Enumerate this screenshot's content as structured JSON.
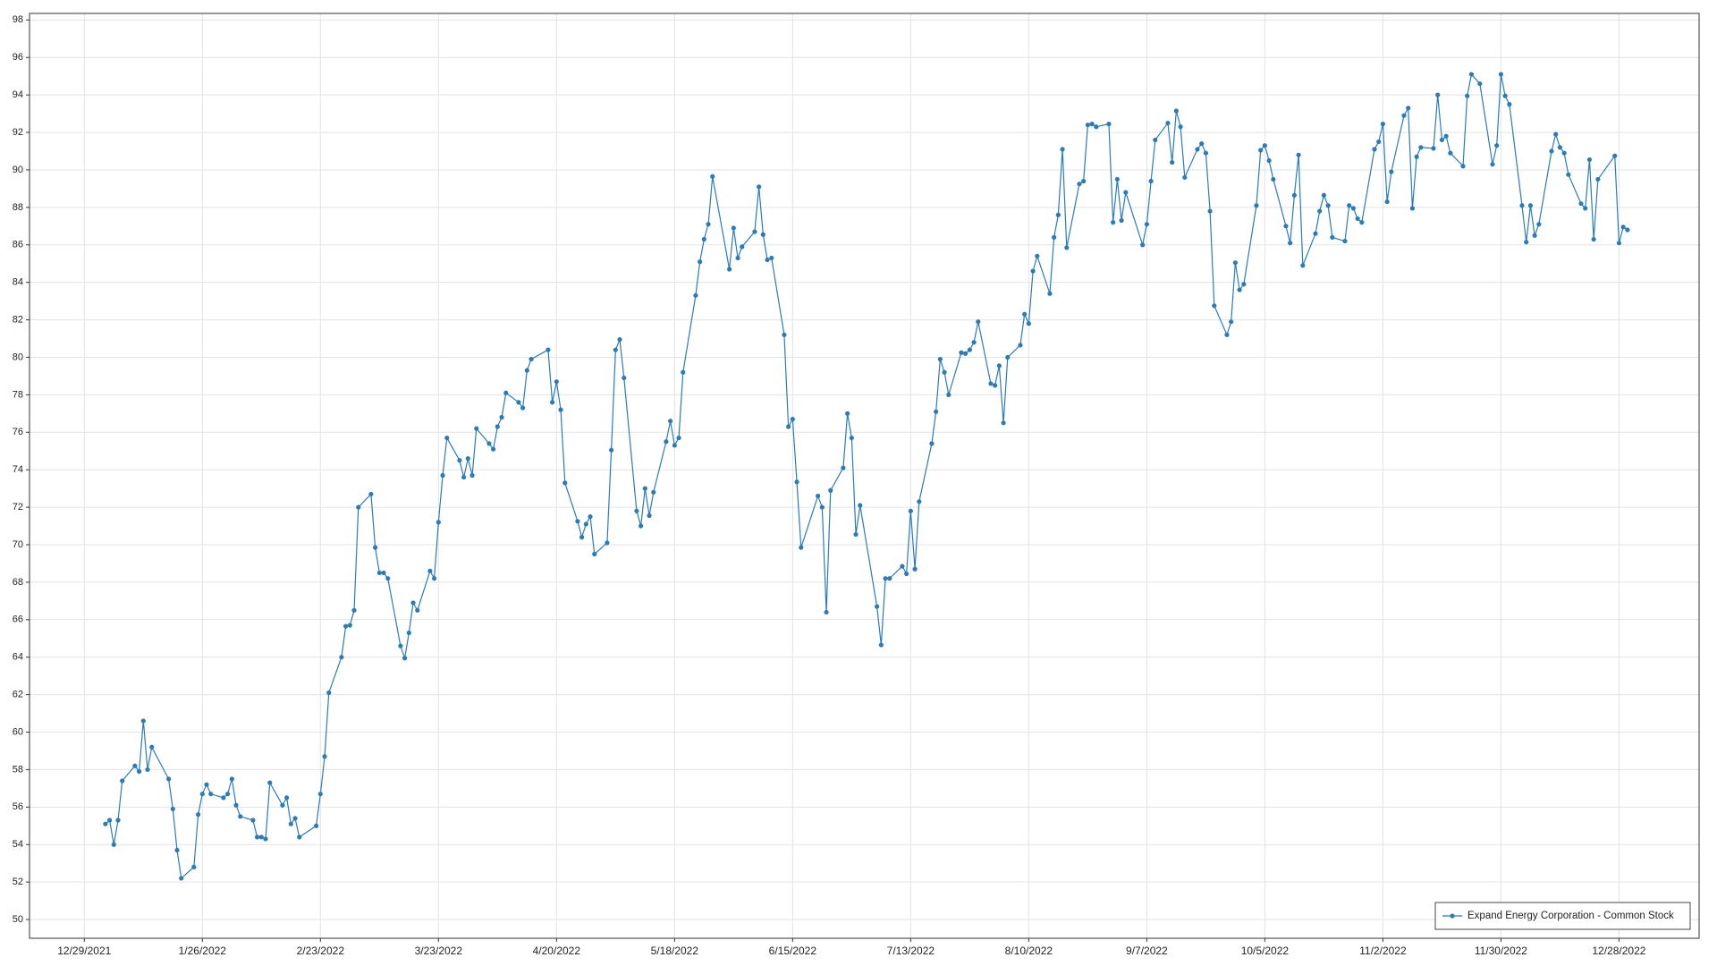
{
  "chart_data": {
    "type": "line",
    "x": [
      "1/3/2022",
      "1/4/2022",
      "1/5/2022",
      "1/6/2022",
      "1/7/2022",
      "1/10/2022",
      "1/11/2022",
      "1/12/2022",
      "1/13/2022",
      "1/14/2022",
      "1/18/2022",
      "1/19/2022",
      "1/20/2022",
      "1/21/2022",
      "1/24/2022",
      "1/25/2022",
      "1/26/2022",
      "1/27/2022",
      "1/28/2022",
      "1/31/2022",
      "2/1/2022",
      "2/2/2022",
      "2/3/2022",
      "2/4/2022",
      "2/7/2022",
      "2/8/2022",
      "2/9/2022",
      "2/10/2022",
      "2/11/2022",
      "2/14/2022",
      "2/15/2022",
      "2/16/2022",
      "2/17/2022",
      "2/18/2022",
      "2/22/2022",
      "2/23/2022",
      "2/24/2022",
      "2/25/2022",
      "2/28/2022",
      "3/1/2022",
      "3/2/2022",
      "3/3/2022",
      "3/4/2022",
      "3/7/2022",
      "3/8/2022",
      "3/9/2022",
      "3/10/2022",
      "3/11/2022",
      "3/14/2022",
      "3/15/2022",
      "3/16/2022",
      "3/17/2022",
      "3/18/2022",
      "3/21/2022",
      "3/22/2022",
      "3/23/2022",
      "3/24/2022",
      "3/25/2022",
      "3/28/2022",
      "3/29/2022",
      "3/30/2022",
      "3/31/2022",
      "4/1/2022",
      "4/4/2022",
      "4/5/2022",
      "4/6/2022",
      "4/7/2022",
      "4/8/2022",
      "4/11/2022",
      "4/12/2022",
      "4/13/2022",
      "4/14/2022",
      "4/18/2022",
      "4/19/2022",
      "4/20/2022",
      "4/21/2022",
      "4/22/2022",
      "4/25/2022",
      "4/26/2022",
      "4/27/2022",
      "4/28/2022",
      "4/29/2022",
      "5/2/2022",
      "5/3/2022",
      "5/4/2022",
      "5/5/2022",
      "5/6/2022",
      "5/9/2022",
      "5/10/2022",
      "5/11/2022",
      "5/12/2022",
      "5/13/2022",
      "5/16/2022",
      "5/17/2022",
      "5/18/2022",
      "5/19/2022",
      "5/20/2022",
      "5/23/2022",
      "5/24/2022",
      "5/25/2022",
      "5/26/2022",
      "5/27/2022",
      "5/31/2022",
      "6/1/2022",
      "6/2/2022",
      "6/3/2022",
      "6/6/2022",
      "6/7/2022",
      "6/8/2022",
      "6/9/2022",
      "6/10/2022",
      "6/13/2022",
      "6/14/2022",
      "6/15/2022",
      "6/16/2022",
      "6/17/2022",
      "6/21/2022",
      "6/22/2022",
      "6/23/2022",
      "6/24/2022",
      "6/27/2022",
      "6/28/2022",
      "6/29/2022",
      "6/30/2022",
      "7/1/2022",
      "7/5/2022",
      "7/6/2022",
      "7/7/2022",
      "7/8/2022",
      "7/11/2022",
      "7/12/2022",
      "7/13/2022",
      "7/14/2022",
      "7/15/2022",
      "7/18/2022",
      "7/19/2022",
      "7/20/2022",
      "7/21/2022",
      "7/22/2022",
      "7/25/2022",
      "7/26/2022",
      "7/27/2022",
      "7/28/2022",
      "7/29/2022",
      "8/1/2022",
      "8/2/2022",
      "8/3/2022",
      "8/4/2022",
      "8/5/2022",
      "8/8/2022",
      "8/9/2022",
      "8/10/2022",
      "8/11/2022",
      "8/12/2022",
      "8/15/2022",
      "8/16/2022",
      "8/17/2022",
      "8/18/2022",
      "8/19/2022",
      "8/22/2022",
      "8/23/2022",
      "8/24/2022",
      "8/25/2022",
      "8/26/2022",
      "8/29/2022",
      "8/30/2022",
      "8/31/2022",
      "9/1/2022",
      "9/2/2022",
      "9/6/2022",
      "9/7/2022",
      "9/8/2022",
      "9/9/2022",
      "9/12/2022",
      "9/13/2022",
      "9/14/2022",
      "9/15/2022",
      "9/16/2022",
      "9/19/2022",
      "9/20/2022",
      "9/21/2022",
      "9/22/2022",
      "9/23/2022",
      "9/26/2022",
      "9/27/2022",
      "9/28/2022",
      "9/29/2022",
      "9/30/2022",
      "10/3/2022",
      "10/4/2022",
      "10/5/2022",
      "10/6/2022",
      "10/7/2022",
      "10/10/2022",
      "10/11/2022",
      "10/12/2022",
      "10/13/2022",
      "10/14/2022",
      "10/17/2022",
      "10/18/2022",
      "10/19/2022",
      "10/20/2022",
      "10/21/2022",
      "10/24/2022",
      "10/25/2022",
      "10/26/2022",
      "10/27/2022",
      "10/28/2022",
      "10/31/2022",
      "11/1/2022",
      "11/2/2022",
      "11/3/2022",
      "11/4/2022",
      "11/7/2022",
      "11/8/2022",
      "11/9/2022",
      "11/10/2022",
      "11/11/2022",
      "11/14/2022",
      "11/15/2022",
      "11/16/2022",
      "11/17/2022",
      "11/18/2022",
      "11/21/2022",
      "11/22/2022",
      "11/23/2022",
      "11/25/2022",
      "11/28/2022",
      "11/29/2022",
      "11/30/2022",
      "12/1/2022",
      "12/2/2022",
      "12/5/2022",
      "12/6/2022",
      "12/7/2022",
      "12/8/2022",
      "12/9/2022",
      "12/12/2022",
      "12/13/2022",
      "12/14/2022",
      "12/15/2022",
      "12/16/2022",
      "12/19/2022",
      "12/20/2022",
      "12/21/2022",
      "12/22/2022",
      "12/23/2022",
      "12/27/2022",
      "12/28/2022",
      "12/29/2022",
      "12/30/2022"
    ],
    "series": [
      {
        "name": "Expand Energy Corporation - Common Stock",
        "color": "#2b7bb9",
        "values": [
          55.1,
          55.3,
          54.0,
          55.3,
          57.4,
          58.2,
          57.9,
          60.6,
          58.0,
          59.2,
          57.5,
          55.9,
          53.7,
          52.2,
          52.8,
          55.6,
          56.7,
          57.2,
          56.7,
          56.5,
          56.7,
          57.5,
          56.1,
          55.5,
          55.3,
          54.4,
          54.4,
          54.3,
          57.3,
          56.1,
          56.5,
          55.1,
          55.4,
          54.4,
          55.0,
          56.7,
          58.7,
          62.1,
          64.0,
          65.65,
          65.7,
          66.5,
          72.0,
          72.7,
          69.85,
          68.5,
          68.5,
          68.2,
          64.6,
          63.95,
          65.3,
          66.9,
          66.5,
          68.6,
          68.2,
          71.2,
          73.7,
          75.7,
          74.5,
          73.6,
          74.6,
          73.7,
          76.2,
          75.4,
          75.1,
          76.3,
          76.8,
          78.1,
          77.6,
          77.3,
          79.3,
          79.9,
          80.4,
          77.6,
          78.7,
          77.2,
          73.3,
          71.25,
          70.4,
          71.1,
          71.5,
          69.5,
          70.1,
          75.05,
          80.4,
          80.95,
          78.9,
          71.8,
          71.0,
          73.0,
          71.55,
          72.8,
          75.5,
          76.6,
          75.3,
          75.7,
          79.2,
          83.3,
          85.1,
          86.3,
          87.1,
          89.65,
          84.7,
          86.9,
          85.3,
          85.9,
          86.7,
          89.1,
          86.55,
          85.2,
          85.3,
          81.2,
          76.3,
          76.7,
          73.35,
          69.85,
          72.6,
          72.0,
          66.4,
          72.9,
          74.1,
          77.0,
          75.7,
          70.55,
          72.1,
          66.7,
          64.65,
          68.2,
          68.2,
          68.85,
          68.45,
          71.8,
          68.7,
          72.3,
          75.4,
          77.1,
          79.9,
          79.2,
          78.0,
          80.25,
          80.2,
          80.4,
          80.8,
          81.9,
          78.6,
          78.5,
          79.55,
          76.5,
          80.0,
          80.65,
          82.3,
          81.8,
          84.6,
          85.4,
          83.4,
          86.4,
          87.6,
          91.1,
          85.85,
          89.25,
          89.4,
          92.4,
          92.45,
          92.3,
          92.45,
          87.2,
          89.5,
          87.3,
          88.8,
          86.0,
          87.1,
          89.4,
          91.6,
          92.5,
          90.4,
          93.15,
          92.3,
          89.6,
          91.1,
          91.4,
          90.9,
          87.8,
          82.75,
          81.2,
          81.9,
          85.05,
          83.6,
          83.9,
          88.1,
          91.05,
          91.3,
          90.5,
          89.5,
          87.0,
          86.1,
          88.65,
          90.8,
          84.9,
          86.6,
          87.8,
          88.65,
          88.1,
          86.4,
          86.2,
          88.1,
          87.95,
          87.4,
          87.2,
          91.1,
          91.5,
          92.45,
          88.3,
          89.9,
          92.9,
          93.3,
          87.95,
          90.7,
          91.2,
          91.15,
          94.0,
          91.6,
          91.8,
          90.9,
          90.2,
          93.95,
          95.1,
          94.6,
          90.3,
          91.3,
          95.1,
          93.95,
          93.5,
          88.1,
          86.15,
          88.1,
          86.5,
          87.1,
          91.0,
          91.9,
          91.2,
          90.9,
          89.75,
          88.2,
          87.95,
          90.55,
          86.3,
          89.5,
          90.75,
          86.1,
          86.95,
          86.8
        ]
      }
    ],
    "xlim": [
      "12/16/2021",
      "1/16/2023"
    ],
    "xticks": [
      "12/29/2021",
      "1/26/2022",
      "2/23/2022",
      "3/23/2022",
      "4/20/2022",
      "5/18/2022",
      "6/15/2022",
      "7/13/2022",
      "8/10/2022",
      "9/7/2022",
      "10/5/2022",
      "11/2/2022",
      "11/30/2022",
      "12/28/2022"
    ],
    "ylim": [
      49,
      98.35
    ],
    "yticks": [
      50,
      52,
      54,
      56,
      58,
      60,
      62,
      64,
      66,
      68,
      70,
      72,
      74,
      76,
      78,
      80,
      82,
      84,
      86,
      88,
      90,
      92,
      94,
      96,
      98
    ],
    "grid": true,
    "legend": "lower right"
  }
}
